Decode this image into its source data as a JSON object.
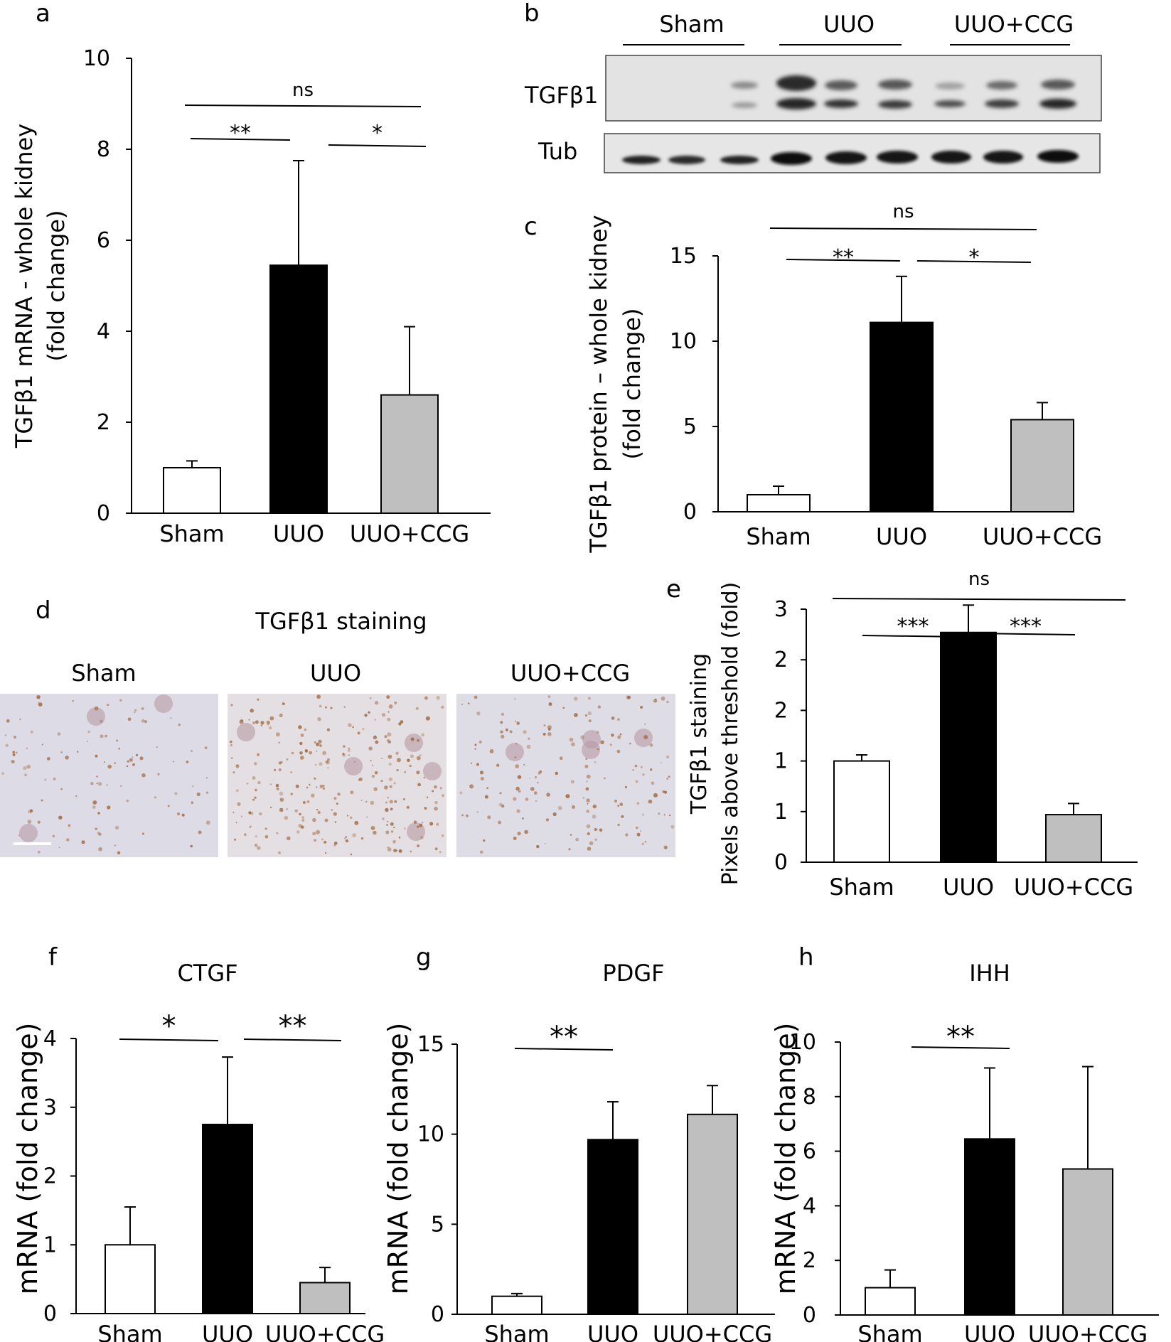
{
  "panel_letters": [
    "a",
    "b",
    "c",
    "d",
    "e",
    "f",
    "g",
    "h"
  ],
  "colors": {
    "sham": "#ffffff",
    "uuo": "#000000",
    "uuo_ccg": "#bfbfbf",
    "axis": "#000000"
  },
  "chart_data": [
    {
      "id": "a",
      "type": "bar",
      "title": "",
      "categories": [
        "Sham",
        "UUO",
        "UUO+CCG"
      ],
      "values": [
        1.0,
        5.45,
        2.6
      ],
      "errors": [
        0.15,
        2.3,
        1.5
      ],
      "ylabel": [
        "TGFβ1 mRNA - whole kidney",
        "(fold change)"
      ],
      "yticks": [
        "0",
        "2",
        "4",
        "6",
        "8",
        "10"
      ],
      "ylim": [
        0,
        10
      ],
      "significance": [
        {
          "from": 0,
          "to": 1,
          "label": "**"
        },
        {
          "from": 1,
          "to": 2,
          "label": "*"
        },
        {
          "from": 0,
          "to": 2,
          "label": "ns"
        }
      ]
    },
    {
      "id": "c",
      "type": "bar",
      "title": "",
      "categories": [
        "Sham",
        "UUO",
        "UUO+CCG"
      ],
      "values": [
        1.0,
        11.1,
        5.4
      ],
      "errors": [
        0.5,
        2.7,
        1.0
      ],
      "ylabel": [
        "TGFβ1 protein – whole kidney",
        "(fold change)"
      ],
      "yticks": [
        "0",
        "5",
        "10",
        "15"
      ],
      "ylim": [
        0,
        15
      ],
      "significance": [
        {
          "from": 0,
          "to": 1,
          "label": "**"
        },
        {
          "from": 1,
          "to": 2,
          "label": "*"
        },
        {
          "from": 0,
          "to": 2,
          "label": "ns"
        }
      ]
    },
    {
      "id": "e",
      "type": "bar",
      "title": "",
      "categories": [
        "Sham",
        "UUO",
        "UUO+CCG"
      ],
      "values": [
        1.0,
        2.27,
        0.47
      ],
      "errors": [
        0.06,
        0.27,
        0.11
      ],
      "ylabel": [
        "TGFβ1 staining",
        "Pixels above threshold (fold)"
      ],
      "yticks": [
        "0",
        "1",
        "1",
        "2",
        "2",
        "3"
      ],
      "ylim": [
        0,
        2.5
      ],
      "significance": [
        {
          "from": 0,
          "to": 1,
          "label": "***"
        },
        {
          "from": 1,
          "to": 2,
          "label": "***"
        },
        {
          "from": 0,
          "to": 2,
          "label": "ns"
        }
      ]
    },
    {
      "id": "f",
      "type": "bar",
      "title": "CTGF",
      "categories": [
        "Sham",
        "UUO",
        "UUO+CCG"
      ],
      "values": [
        1.0,
        2.75,
        0.45
      ],
      "errors": [
        0.55,
        0.98,
        0.22
      ],
      "ylabel": [
        "mRNA (fold change)"
      ],
      "yticks": [
        "0",
        "1",
        "2",
        "3",
        "4"
      ],
      "ylim": [
        0,
        4
      ],
      "significance": [
        {
          "from": 0,
          "to": 1,
          "label": "*"
        },
        {
          "from": 1,
          "to": 2,
          "label": "**"
        }
      ]
    },
    {
      "id": "g",
      "type": "bar",
      "title": "PDGF",
      "categories": [
        "Sham",
        "UUO",
        "UUO+CCG"
      ],
      "values": [
        1.0,
        9.7,
        11.1
      ],
      "errors": [
        0.15,
        2.1,
        1.6
      ],
      "ylabel": [
        "mRNA (fold change)"
      ],
      "yticks": [
        "0",
        "5",
        "10",
        "15"
      ],
      "ylim": [
        0,
        15
      ],
      "significance": [
        {
          "from": 0,
          "to": 1,
          "label": "**"
        }
      ]
    },
    {
      "id": "h",
      "type": "bar",
      "title": "IHH",
      "categories": [
        "Sham",
        "UUO",
        "UUO+CCG"
      ],
      "values": [
        1.0,
        6.45,
        5.35
      ],
      "errors": [
        0.65,
        2.6,
        3.75
      ],
      "ylabel": [
        "mRNA (fold change)"
      ],
      "yticks": [
        "0",
        "2",
        "4",
        "6",
        "8",
        "10"
      ],
      "ylim": [
        0,
        10
      ],
      "significance": [
        {
          "from": 0,
          "to": 1,
          "label": "**"
        }
      ]
    }
  ],
  "blot": {
    "groups": [
      "Sham",
      "UUO",
      "UUO+CCG"
    ],
    "rows": [
      "TGFβ1",
      "Tub"
    ],
    "lanes_per_group": 3
  },
  "staining": {
    "title": "TGFβ1 staining",
    "panels": [
      "Sham",
      "UUO",
      "UUO+CCG"
    ]
  }
}
